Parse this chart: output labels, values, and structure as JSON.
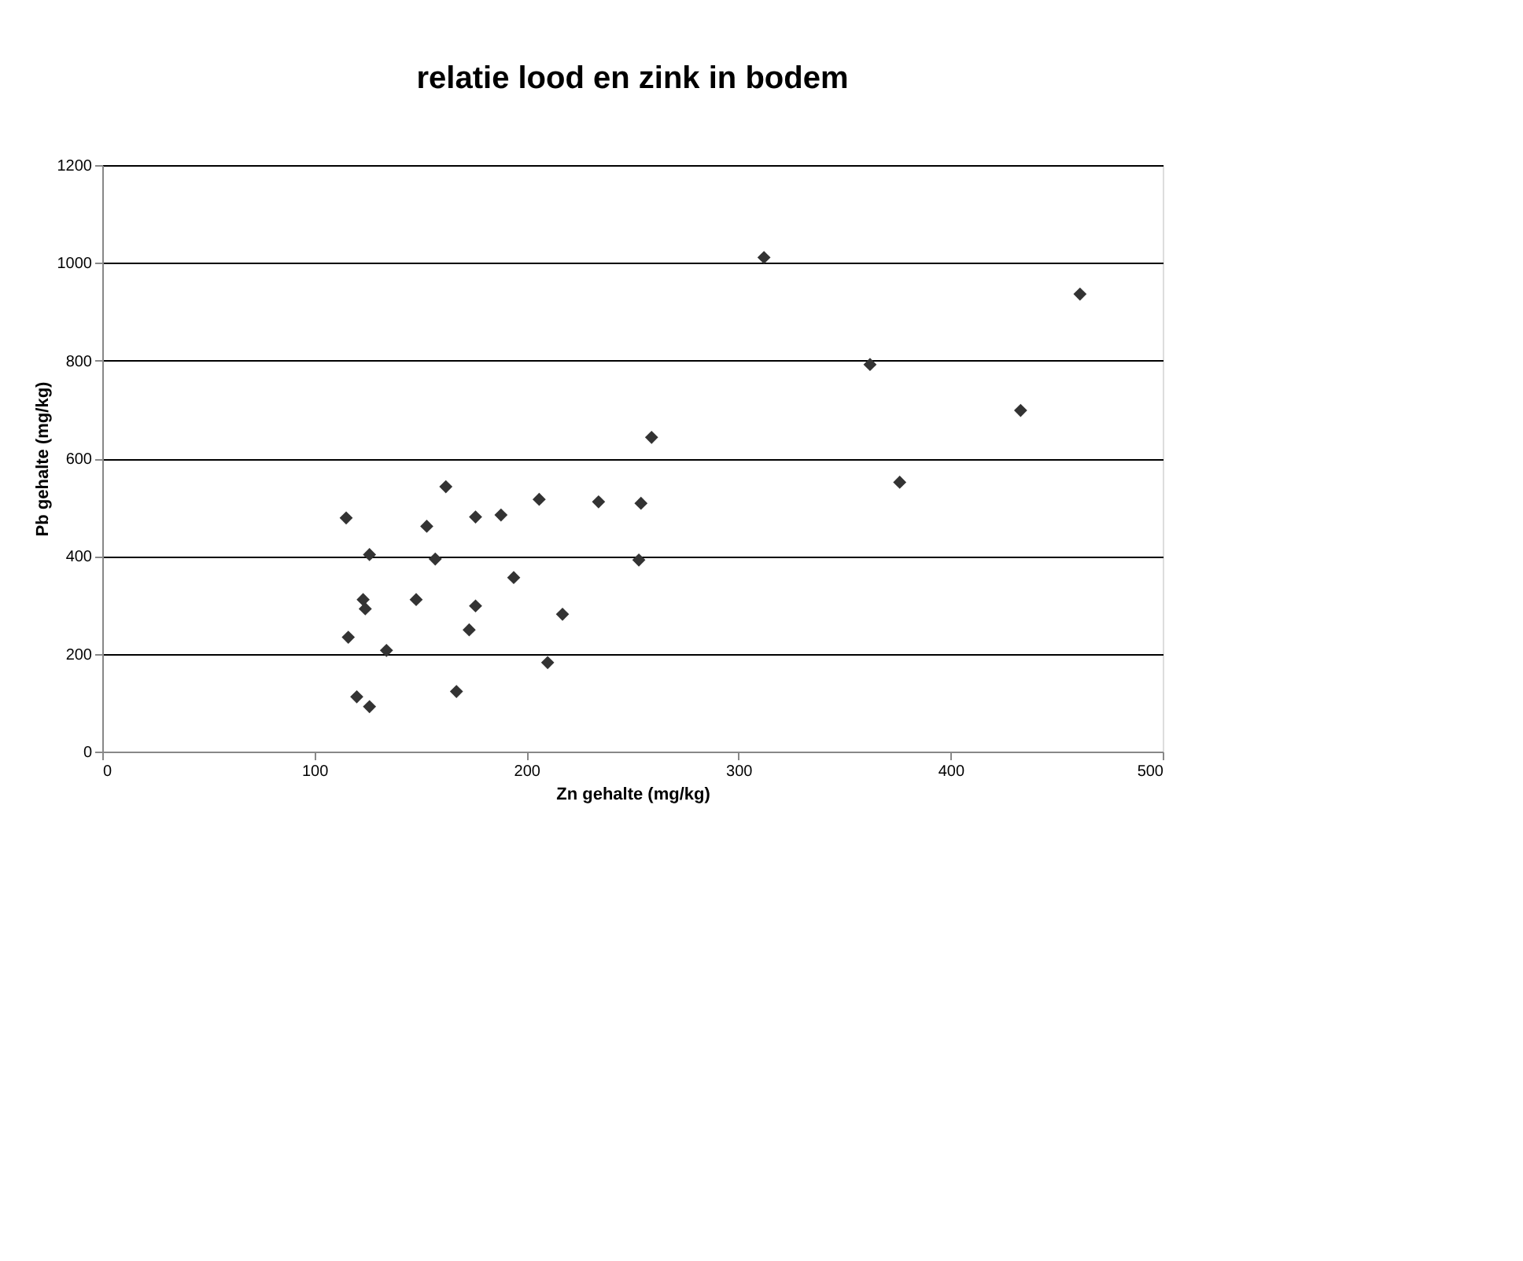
{
  "chart_data": {
    "type": "scatter",
    "title": "relatie lood en zink in bodem",
    "xlabel": "Zn gehalte (mg/kg)",
    "ylabel": "Pb gehalte (mg/kg)",
    "x": [
      312,
      461,
      362,
      433,
      259,
      376,
      162,
      206,
      234,
      254,
      115,
      176,
      188,
      153,
      126,
      157,
      253,
      194,
      123,
      148,
      124,
      176,
      217,
      173,
      116,
      134,
      210,
      167,
      120,
      126
    ],
    "series": [
      {
        "color": "#333333",
        "values": [
          1011,
          936,
          792,
          698,
          643,
          551,
          542,
          516,
          511,
          508,
          478,
          480,
          484,
          461,
          403,
          394,
          392,
          356,
          311,
          311,
          292,
          298,
          281,
          249,
          234,
          207,
          182,
          123,
          112,
          92
        ]
      }
    ],
    "xlim": [
      0,
      500
    ],
    "xticks": [
      0,
      100,
      200,
      300,
      400,
      500
    ],
    "ylim": [
      0,
      1200
    ],
    "yticks": [
      0,
      200,
      400,
      600,
      800,
      1000,
      1200
    ],
    "grid": "y",
    "marker": "diamond"
  }
}
